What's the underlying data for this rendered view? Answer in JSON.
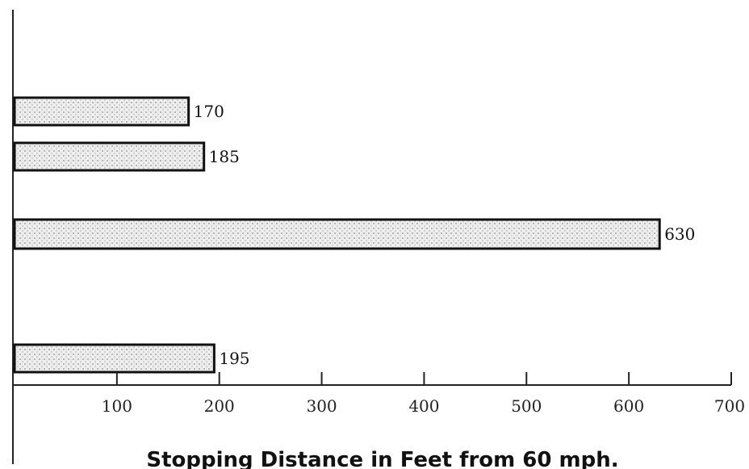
{
  "chart_data": {
    "type": "bar",
    "orientation": "horizontal",
    "categories": [
      "",
      "",
      "",
      ""
    ],
    "values": [
      170,
      185,
      630,
      195
    ],
    "data_labels": [
      "170",
      "185",
      "630",
      "195"
    ],
    "title": "",
    "xlabel": "Stopping Distance in Feet from 60 mph.",
    "ylabel": "",
    "xlim": [
      0,
      700
    ],
    "xticks": [
      100,
      200,
      300,
      400,
      500,
      600,
      700
    ],
    "xtick_labels": [
      "100",
      "200",
      "300",
      "400",
      "500",
      "600",
      "700"
    ],
    "grid": false,
    "legend": "none",
    "bar_fill": "#e6e6e6",
    "bar_stroke": "#111111"
  }
}
